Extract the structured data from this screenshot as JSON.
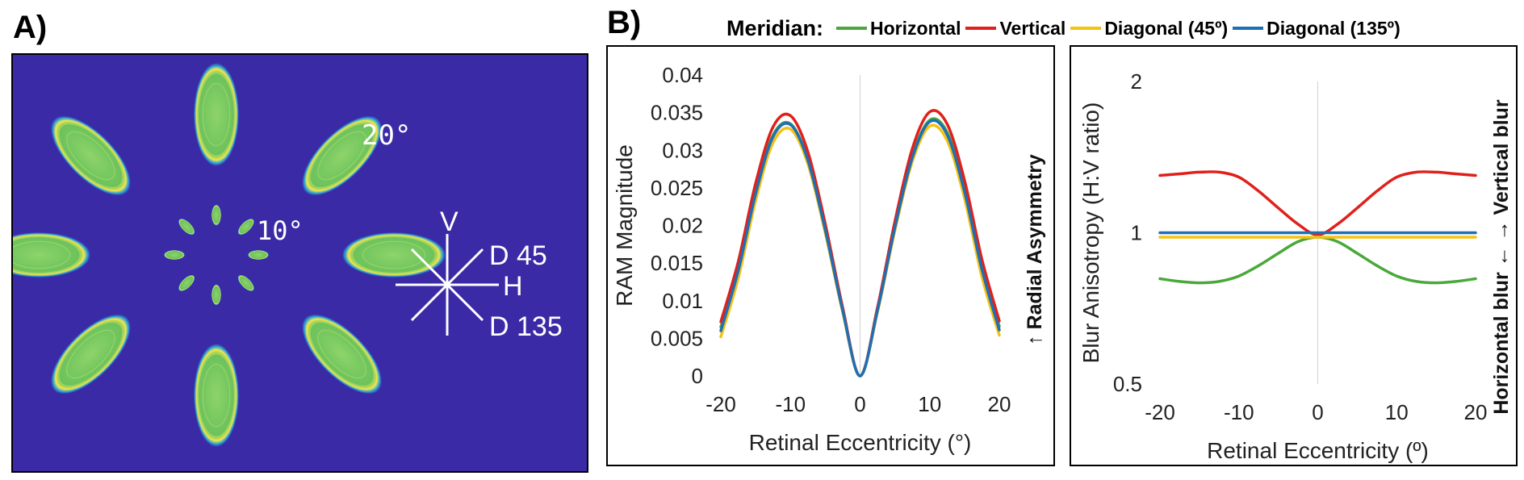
{
  "panel_a": {
    "label": "A)",
    "background_color": "#3a2aa6",
    "ellipse_colors": {
      "fill": "#7ac85a",
      "rim": "#f2e64a",
      "halo": "#2ea8d8"
    },
    "ring_labels": [
      "20°",
      "10°"
    ],
    "compass": {
      "v": "V",
      "h": "H",
      "d45": "D 45",
      "d135": "D 135"
    }
  },
  "panel_b": {
    "label": "B)"
  },
  "legend": {
    "title": "Meridian:",
    "items": [
      {
        "name": "Horizontal",
        "color": "#4aa83a"
      },
      {
        "name": "Vertical",
        "color": "#e0201b"
      },
      {
        "name": "Diagonal (45º)",
        "color": "#f5c211"
      },
      {
        "name": "Diagonal (135º)",
        "color": "#1f6fb5"
      }
    ]
  },
  "chart_data": [
    {
      "type": "line",
      "xlabel": "Retinal Eccentricity (°)",
      "ylabel": "RAM Magnitude",
      "side_label": "↑ Radial Asymmetry",
      "xlim": [
        -20,
        20
      ],
      "ylim": [
        0,
        0.04
      ],
      "x_ticks": [
        "-20",
        "-10",
        "0",
        "10",
        "20"
      ],
      "y_ticks": [
        "0",
        "0.005",
        "0.01",
        "0.015",
        "0.02",
        "0.025",
        "0.03",
        "0.035",
        "0.04"
      ],
      "x": [
        -20,
        -17.5,
        -15,
        -12.5,
        -10,
        -7.5,
        -5,
        -2.5,
        0,
        2.5,
        5,
        7.5,
        10,
        12.5,
        15,
        17.5,
        20
      ],
      "series": [
        {
          "name": "Horizontal",
          "color": "#4aa83a",
          "values": [
            0.0065,
            0.0143,
            0.0245,
            0.032,
            0.0335,
            0.0288,
            0.0195,
            0.0088,
            0,
            0.0088,
            0.0198,
            0.0292,
            0.034,
            0.0324,
            0.0248,
            0.0146,
            0.0066
          ]
        },
        {
          "name": "Vertical",
          "color": "#e0201b",
          "values": [
            0.0072,
            0.0152,
            0.0256,
            0.0331,
            0.0346,
            0.0298,
            0.0202,
            0.0091,
            0,
            0.0091,
            0.0205,
            0.0302,
            0.0351,
            0.0335,
            0.026,
            0.0155,
            0.0073
          ]
        },
        {
          "name": "Diagonal (45º)",
          "color": "#f5c211",
          "values": [
            0.0052,
            0.013,
            0.0233,
            0.031,
            0.0328,
            0.0282,
            0.019,
            0.0085,
            0,
            0.0085,
            0.0193,
            0.0285,
            0.0332,
            0.0313,
            0.0236,
            0.0132,
            0.0054
          ]
        },
        {
          "name": "Diagonal (135º)",
          "color": "#1f6fb5",
          "values": [
            0.006,
            0.014,
            0.0242,
            0.0318,
            0.0334,
            0.0287,
            0.0194,
            0.0087,
            0,
            0.0087,
            0.0197,
            0.029,
            0.0338,
            0.0321,
            0.0245,
            0.0142,
            0.0061
          ]
        }
      ]
    },
    {
      "type": "line",
      "xlabel": "Retinal Eccentricity (º)",
      "ylabel": "Blur Anisotropy (H:V ratio)",
      "side_label": "Horizontal blur ← → Vertical blur",
      "xlim": [
        -20,
        20
      ],
      "ylim": [
        0.5,
        2
      ],
      "y_scale": "log",
      "x_ticks": [
        "-20",
        "-10",
        "0",
        "10",
        "20"
      ],
      "y_ticks": [
        "0.5",
        "1",
        "2"
      ],
      "x": [
        -20,
        -17.5,
        -15,
        -12.5,
        -10,
        -7.5,
        -5,
        -2.5,
        0,
        2.5,
        5,
        7.5,
        10,
        12.5,
        15,
        17.5,
        20
      ],
      "series": [
        {
          "name": "Horizontal",
          "color": "#4aa83a",
          "values": [
            0.81,
            0.8,
            0.795,
            0.8,
            0.82,
            0.86,
            0.91,
            0.96,
            0.98,
            0.96,
            0.91,
            0.86,
            0.82,
            0.8,
            0.795,
            0.8,
            0.81
          ]
        },
        {
          "name": "Vertical",
          "color": "#e0201b",
          "values": [
            1.3,
            1.31,
            1.32,
            1.32,
            1.29,
            1.21,
            1.12,
            1.04,
            0.99,
            1.04,
            1.12,
            1.21,
            1.29,
            1.32,
            1.32,
            1.31,
            1.3
          ]
        },
        {
          "name": "Diagonal (45º)",
          "color": "#f5c211",
          "values": [
            0.98,
            0.98,
            0.98,
            0.98,
            0.98,
            0.98,
            0.98,
            0.98,
            0.98,
            0.98,
            0.98,
            0.98,
            0.98,
            0.98,
            0.98,
            0.98,
            0.98
          ]
        },
        {
          "name": "Diagonal (135º)",
          "color": "#1f6fb5",
          "values": [
            1.0,
            1.0,
            1.0,
            1.0,
            1.0,
            1.0,
            1.0,
            1.0,
            1.0,
            1.0,
            1.0,
            1.0,
            1.0,
            1.0,
            1.0,
            1.0,
            1.0
          ]
        }
      ]
    }
  ]
}
